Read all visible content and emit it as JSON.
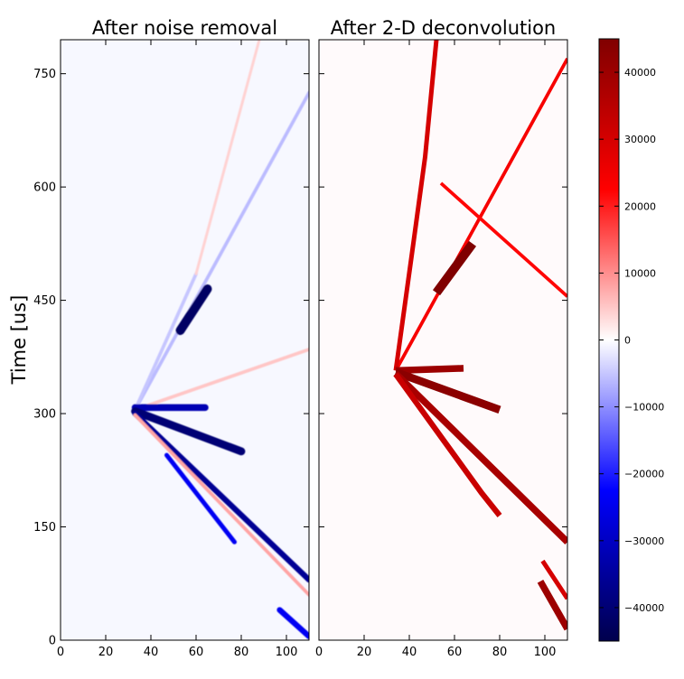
{
  "chart_data": [
    {
      "type": "heatmap",
      "title": "After noise removal",
      "ylabel": "Time [us]",
      "xlim": [
        0,
        110
      ],
      "ylim": [
        0,
        795
      ],
      "x_ticks": [
        0,
        20,
        40,
        60,
        80,
        100
      ],
      "y_ticks": [
        0,
        150,
        300,
        450,
        600,
        750
      ],
      "description": "Bipolar signal tracks radiating from a vertex near x=33, t=305",
      "tracks": [
        {
          "x": [
            33,
            110
          ],
          "y": [
            305,
            725
          ],
          "value": -6000,
          "width": 1.5
        },
        {
          "x": [
            33,
            110
          ],
          "y": [
            305,
            385
          ],
          "value": 5000,
          "width": 1.5
        },
        {
          "x": [
            33,
            60
          ],
          "y": [
            305,
            485
          ],
          "value": -5000,
          "width": 1.5
        },
        {
          "x": [
            60,
            88
          ],
          "y": [
            485,
            795
          ],
          "value": 4000,
          "width": 1.2
        },
        {
          "x": [
            33,
            64
          ],
          "y": [
            308,
            308
          ],
          "value": -32000,
          "width": 3
        },
        {
          "x": [
            33,
            80
          ],
          "y": [
            303,
            250
          ],
          "value": -40000,
          "width": 3.5
        },
        {
          "x": [
            33,
            110
          ],
          "y": [
            300,
            80
          ],
          "value": -36000,
          "width": 2.5
        },
        {
          "x": [
            53,
            65
          ],
          "y": [
            410,
            465
          ],
          "value": -42000,
          "width": 4
        },
        {
          "x": [
            47,
            77
          ],
          "y": [
            245,
            130
          ],
          "value": -24000,
          "width": 2
        },
        {
          "x": [
            97,
            110
          ],
          "y": [
            40,
            5
          ],
          "value": -24000,
          "width": 2.5
        },
        {
          "x": [
            33,
            110
          ],
          "y": [
            298,
            60
          ],
          "value": 8000,
          "width": 1.5
        }
      ]
    },
    {
      "type": "heatmap",
      "title": "After 2-D deconvolution",
      "xlim": [
        0,
        110
      ],
      "ylim": [
        0,
        795
      ],
      "x_ticks": [
        0,
        20,
        40,
        60,
        80,
        100
      ],
      "description": "Deconvolved (positive) tracks radiating from vertex near x=34, t=357",
      "tracks": [
        {
          "x": [
            34,
            110
          ],
          "y": [
            357,
            770
          ],
          "value": 24000,
          "width": 1.5
        },
        {
          "x": [
            34,
            42,
            47,
            52
          ],
          "y": [
            357,
            530,
            640,
            795
          ],
          "value": 30000,
          "width": 2
        },
        {
          "x": [
            34,
            64
          ],
          "y": [
            357,
            360
          ],
          "value": 40000,
          "width": 3
        },
        {
          "x": [
            34,
            80
          ],
          "y": [
            355,
            305
          ],
          "value": 43000,
          "width": 3.5
        },
        {
          "x": [
            34,
            110
          ],
          "y": [
            353,
            130
          ],
          "value": 38000,
          "width": 3
        },
        {
          "x": [
            34,
            72,
            80
          ],
          "y": [
            352,
            195,
            165
          ],
          "value": 32000,
          "width": 2.5
        },
        {
          "x": [
            52,
            68
          ],
          "y": [
            460,
            525
          ],
          "value": 45000,
          "width": 4
        },
        {
          "x": [
            54,
            110
          ],
          "y": [
            605,
            455
          ],
          "value": 22000,
          "width": 1.5
        },
        {
          "x": [
            98,
            110
          ],
          "y": [
            78,
            15
          ],
          "value": 40000,
          "width": 3
        },
        {
          "x": [
            99,
            110
          ],
          "y": [
            105,
            55
          ],
          "value": 30000,
          "width": 2
        }
      ]
    }
  ],
  "colorbar": {
    "colormap": "seismic",
    "vmin": -45000,
    "vmax": 45000,
    "ticks": [
      40000,
      30000,
      20000,
      10000,
      0,
      -10000,
      -20000,
      -30000,
      -40000
    ],
    "tick_labels": [
      "40000",
      "30000",
      "20000",
      "10000",
      "0",
      "−10000",
      "−20000",
      "−30000",
      "−40000"
    ]
  },
  "colors": {
    "low": "#00004c",
    "mid_low": "#0000ff",
    "mid": "#ffffff",
    "mid_high": "#ff0000",
    "high": "#800000"
  }
}
